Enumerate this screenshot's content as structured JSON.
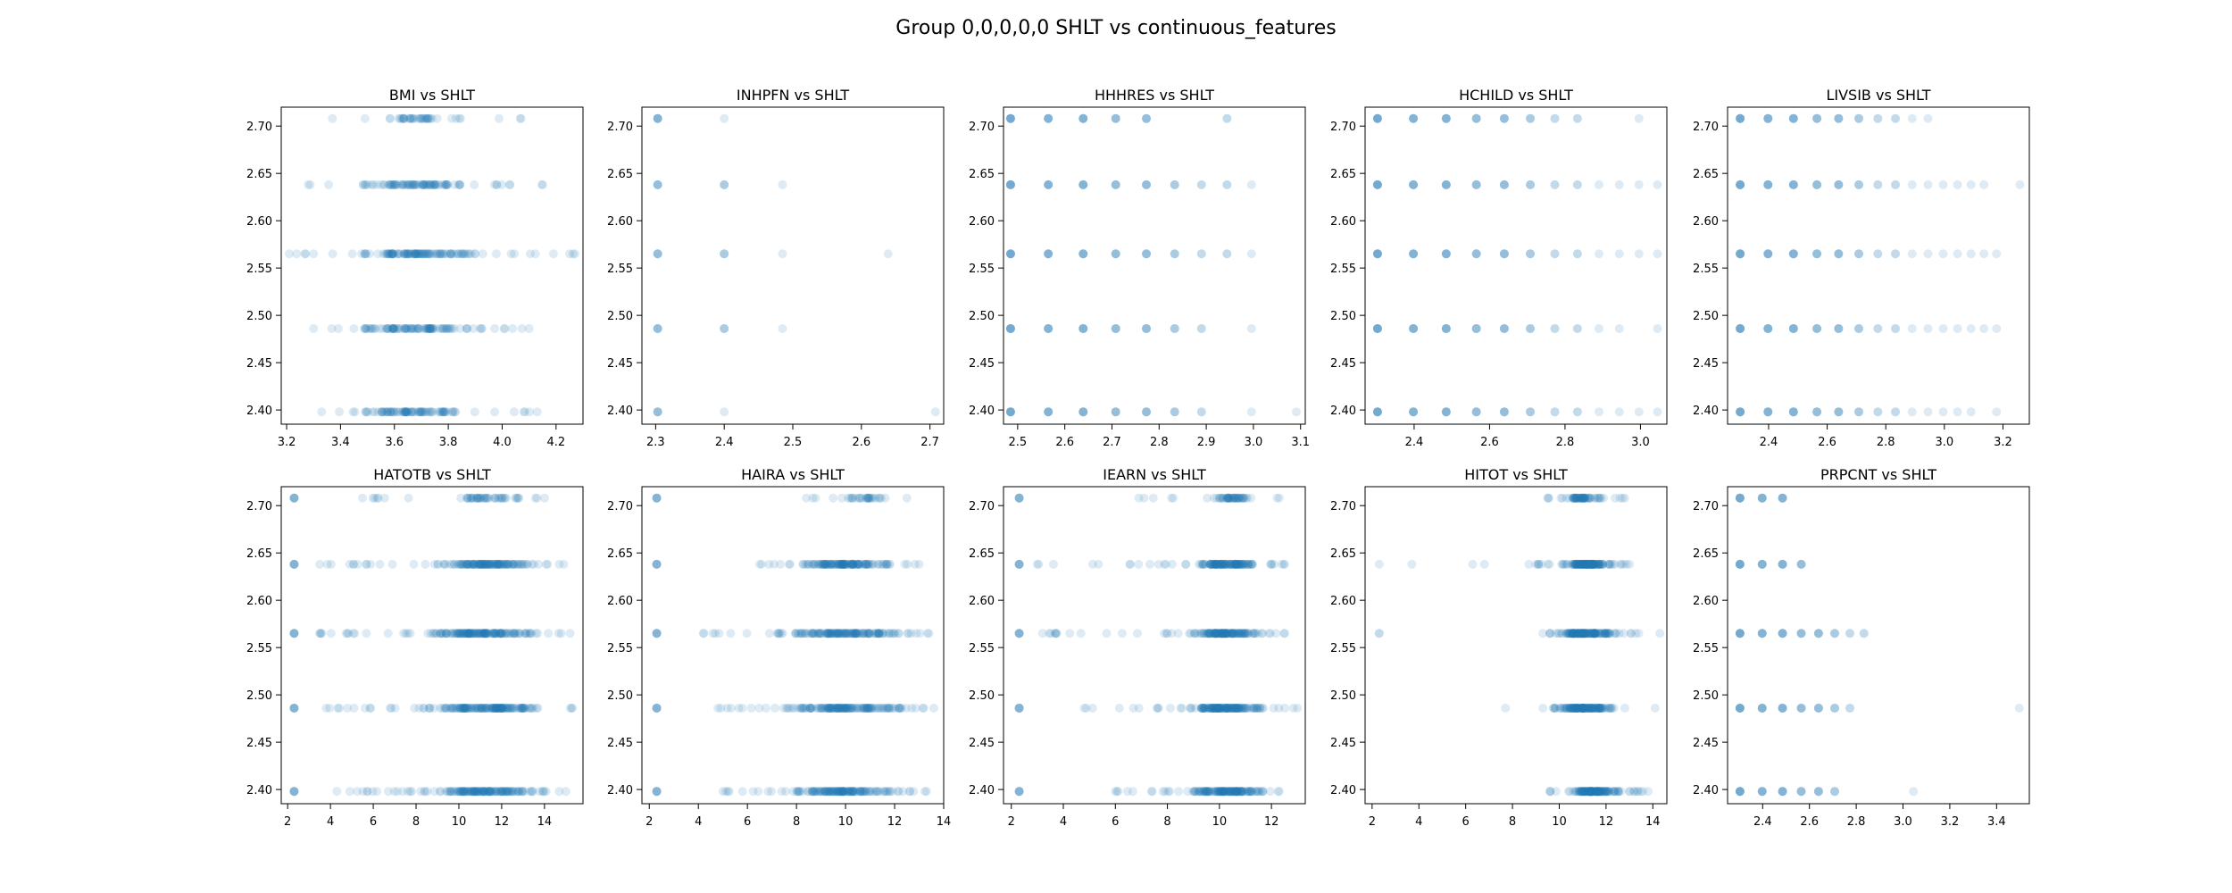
{
  "figure": {
    "title": "Group 0,0,0,0,0 SHLT vs continuous_features",
    "point_color": "#1f77b4",
    "point_alpha": 0.15
  },
  "chart_data": [
    {
      "type": "scatter",
      "title": "BMI vs SHLT",
      "xlim": [
        3.18,
        4.3
      ],
      "ylim": [
        2.385,
        2.72
      ],
      "xticks": [
        "3.2",
        "3.4",
        "3.6",
        "3.8",
        "4.0",
        "4.2"
      ],
      "xtick_values": [
        3.2,
        3.4,
        3.6,
        3.8,
        4.0,
        4.2
      ],
      "yticks": [
        "2.40",
        "2.45",
        "2.50",
        "2.55",
        "2.60",
        "2.65",
        "2.70"
      ],
      "ytick_values": [
        2.4,
        2.45,
        2.5,
        2.55,
        2.6,
        2.65,
        2.7
      ],
      "levels": [
        {
          "y": 2.708,
          "x_range": [
            3.37,
            4.07
          ],
          "dense_range": [
            3.55,
            3.8
          ],
          "n": 40
        },
        {
          "y": 2.638,
          "x_range": [
            3.28,
            4.15
          ],
          "dense_range": [
            3.42,
            3.93
          ],
          "n": 90
        },
        {
          "y": 2.565,
          "x_range": [
            3.21,
            4.27
          ],
          "dense_range": [
            3.38,
            4.0
          ],
          "n": 120
        },
        {
          "y": 2.486,
          "x_range": [
            3.3,
            4.1
          ],
          "dense_range": [
            3.42,
            3.97
          ],
          "n": 100
        },
        {
          "y": 2.398,
          "x_range": [
            3.33,
            4.13
          ],
          "dense_range": [
            3.37,
            3.93
          ],
          "n": 90
        }
      ]
    },
    {
      "type": "scatter",
      "title": "INHPFN vs SHLT",
      "xlim": [
        2.28,
        2.72
      ],
      "ylim": [
        2.385,
        2.72
      ],
      "xticks": [
        "2.3",
        "2.4",
        "2.5",
        "2.6",
        "2.7"
      ],
      "xtick_values": [
        2.3,
        2.4,
        2.5,
        2.6,
        2.7
      ],
      "yticks": [
        "2.40",
        "2.45",
        "2.50",
        "2.55",
        "2.60",
        "2.65",
        "2.70"
      ],
      "ytick_values": [
        2.4,
        2.45,
        2.5,
        2.55,
        2.6,
        2.65,
        2.7
      ],
      "points": [
        [
          2.303,
          2.708
        ],
        [
          2.303,
          2.708
        ],
        [
          2.303,
          2.708
        ],
        [
          2.303,
          2.708
        ],
        [
          2.303,
          2.708
        ],
        [
          2.4,
          2.708
        ],
        [
          2.303,
          2.638
        ],
        [
          2.303,
          2.638
        ],
        [
          2.303,
          2.638
        ],
        [
          2.303,
          2.638
        ],
        [
          2.4,
          2.638
        ],
        [
          2.4,
          2.638
        ],
        [
          2.4,
          2.638
        ],
        [
          2.485,
          2.638
        ],
        [
          2.303,
          2.565
        ],
        [
          2.303,
          2.565
        ],
        [
          2.303,
          2.565
        ],
        [
          2.303,
          2.565
        ],
        [
          2.4,
          2.565
        ],
        [
          2.4,
          2.565
        ],
        [
          2.4,
          2.565
        ],
        [
          2.485,
          2.565
        ],
        [
          2.639,
          2.565
        ],
        [
          2.303,
          2.486
        ],
        [
          2.303,
          2.486
        ],
        [
          2.303,
          2.486
        ],
        [
          2.303,
          2.486
        ],
        [
          2.4,
          2.486
        ],
        [
          2.4,
          2.486
        ],
        [
          2.4,
          2.486
        ],
        [
          2.485,
          2.486
        ],
        [
          2.303,
          2.398
        ],
        [
          2.303,
          2.398
        ],
        [
          2.303,
          2.398
        ],
        [
          2.303,
          2.398
        ],
        [
          2.4,
          2.398
        ],
        [
          2.708,
          2.398
        ]
      ]
    },
    {
      "type": "scatter",
      "title": "HHHRES vs SHLT",
      "xlim": [
        2.47,
        3.11
      ],
      "ylim": [
        2.385,
        2.72
      ],
      "xticks": [
        "2.5",
        "2.6",
        "2.7",
        "2.8",
        "2.9",
        "3.0",
        "3.1"
      ],
      "xtick_values": [
        2.5,
        2.6,
        2.7,
        2.8,
        2.9,
        3.0,
        3.1
      ],
      "yticks": [
        "2.40",
        "2.45",
        "2.50",
        "2.55",
        "2.60",
        "2.65",
        "2.70"
      ],
      "ytick_values": [
        2.4,
        2.45,
        2.5,
        2.55,
        2.6,
        2.65,
        2.7
      ],
      "discrete_x": [
        2.485,
        2.565,
        2.639,
        2.708,
        2.773,
        2.833,
        2.89,
        2.944,
        2.996,
        3.091
      ],
      "levels": [
        {
          "y": 2.708,
          "x_idx_max": 7,
          "skip": [
            5,
            6
          ]
        },
        {
          "y": 2.638,
          "x_idx_max": 8,
          "skip": []
        },
        {
          "y": 2.565,
          "x_idx_max": 8,
          "skip": []
        },
        {
          "y": 2.486,
          "x_idx_max": 8,
          "skip": [
            7
          ]
        },
        {
          "y": 2.398,
          "x_idx_max": 9,
          "skip": [
            7
          ]
        }
      ]
    },
    {
      "type": "scatter",
      "title": "HCHILD vs SHLT",
      "xlim": [
        2.27,
        3.07
      ],
      "ylim": [
        2.385,
        2.72
      ],
      "xticks": [
        "2.4",
        "2.6",
        "2.8",
        "3.0"
      ],
      "xtick_values": [
        2.4,
        2.6,
        2.8,
        3.0
      ],
      "yticks": [
        "2.40",
        "2.45",
        "2.50",
        "2.55",
        "2.60",
        "2.65",
        "2.70"
      ],
      "ytick_values": [
        2.4,
        2.45,
        2.5,
        2.55,
        2.6,
        2.65,
        2.7
      ],
      "discrete_x": [
        2.303,
        2.398,
        2.485,
        2.565,
        2.639,
        2.708,
        2.773,
        2.833,
        2.89,
        2.944,
        2.996,
        3.045
      ],
      "levels": [
        {
          "y": 2.708,
          "x_idx_max": 10,
          "skip": [
            8,
            9
          ]
        },
        {
          "y": 2.638,
          "x_idx_max": 11,
          "skip": []
        },
        {
          "y": 2.565,
          "x_idx_max": 11,
          "skip": []
        },
        {
          "y": 2.486,
          "x_idx_max": 11,
          "skip": [
            10
          ]
        },
        {
          "y": 2.398,
          "x_idx_max": 11,
          "skip": []
        }
      ]
    },
    {
      "type": "scatter",
      "title": "LIVSIB vs SHLT",
      "xlim": [
        2.26,
        3.29
      ],
      "ylim": [
        2.385,
        2.72
      ],
      "xticks": [
        "2.4",
        "2.6",
        "2.8",
        "3.0",
        "3.2"
      ],
      "xtick_values": [
        2.4,
        2.6,
        2.8,
        3.0,
        3.2
      ],
      "yticks": [
        "2.40",
        "2.45",
        "2.50",
        "2.55",
        "2.60",
        "2.65",
        "2.70"
      ],
      "ytick_values": [
        2.4,
        2.45,
        2.5,
        2.55,
        2.6,
        2.65,
        2.7
      ],
      "discrete_x": [
        2.303,
        2.398,
        2.485,
        2.565,
        2.639,
        2.708,
        2.773,
        2.833,
        2.89,
        2.944,
        2.996,
        3.045,
        3.091,
        3.135,
        3.178,
        3.258
      ],
      "levels": [
        {
          "y": 2.708,
          "x_idx_max": 9,
          "skip": []
        },
        {
          "y": 2.638,
          "x_idx_max": 15,
          "skip": [
            14
          ]
        },
        {
          "y": 2.565,
          "x_idx_max": 14,
          "skip": []
        },
        {
          "y": 2.486,
          "x_idx_max": 14,
          "skip": []
        },
        {
          "y": 2.398,
          "x_idx_max": 14,
          "skip": [
            13
          ]
        }
      ]
    },
    {
      "type": "scatter",
      "title": "HATOTB vs SHLT",
      "xlim": [
        1.7,
        15.8
      ],
      "ylim": [
        2.385,
        2.72
      ],
      "xticks": [
        "2",
        "4",
        "6",
        "8",
        "10",
        "12",
        "14"
      ],
      "xtick_values": [
        2,
        4,
        6,
        8,
        10,
        12,
        14
      ],
      "yticks": [
        "2.40",
        "2.45",
        "2.50",
        "2.55",
        "2.60",
        "2.65",
        "2.70"
      ],
      "ytick_values": [
        2.4,
        2.45,
        2.5,
        2.55,
        2.6,
        2.65,
        2.7
      ],
      "left_cluster_x": 2.303,
      "levels": [
        {
          "y": 2.708,
          "x_range": [
            5.5,
            14.0
          ],
          "dense_range": [
            9.5,
            13.5
          ],
          "n": 50
        },
        {
          "y": 2.638,
          "x_range": [
            3.5,
            14.9
          ],
          "dense_range": [
            8.5,
            14.0
          ],
          "n": 140
        },
        {
          "y": 2.565,
          "x_range": [
            3.5,
            15.2
          ],
          "dense_range": [
            7.5,
            14.5
          ],
          "n": 160
        },
        {
          "y": 2.486,
          "x_range": [
            3.8,
            15.3
          ],
          "dense_range": [
            7.5,
            14.7
          ],
          "n": 160
        },
        {
          "y": 2.398,
          "x_range": [
            4.3,
            15.0
          ],
          "dense_range": [
            7.5,
            14.6
          ],
          "n": 150
        }
      ]
    },
    {
      "type": "scatter",
      "title": "HAIRA vs SHLT",
      "xlim": [
        1.7,
        14.0
      ],
      "ylim": [
        2.385,
        2.72
      ],
      "xticks": [
        "2",
        "4",
        "6",
        "8",
        "10",
        "12",
        "14"
      ],
      "xtick_values": [
        2,
        4,
        6,
        8,
        10,
        12,
        14
      ],
      "yticks": [
        "2.40",
        "2.45",
        "2.50",
        "2.55",
        "2.60",
        "2.65",
        "2.70"
      ],
      "ytick_values": [
        2.4,
        2.45,
        2.5,
        2.55,
        2.6,
        2.65,
        2.7
      ],
      "left_cluster_x": 2.303,
      "levels": [
        {
          "y": 2.708,
          "x_range": [
            8.4,
            12.5
          ],
          "dense_range": [
            9.5,
            12.0
          ],
          "n": 30
        },
        {
          "y": 2.638,
          "x_range": [
            6.5,
            13.0
          ],
          "dense_range": [
            7.5,
            12.5
          ],
          "n": 130
        },
        {
          "y": 2.565,
          "x_range": [
            4.2,
            13.4
          ],
          "dense_range": [
            6.8,
            13.0
          ],
          "n": 150
        },
        {
          "y": 2.486,
          "x_range": [
            4.8,
            13.6
          ],
          "dense_range": [
            7.0,
            13.3
          ],
          "n": 150
        },
        {
          "y": 2.398,
          "x_range": [
            5.0,
            13.3
          ],
          "dense_range": [
            7.0,
            13.0
          ],
          "n": 140
        }
      ]
    },
    {
      "type": "scatter",
      "title": "IEARN vs SHLT",
      "xlim": [
        1.7,
        13.3
      ],
      "ylim": [
        2.385,
        2.72
      ],
      "xticks": [
        "2",
        "4",
        "6",
        "8",
        "10",
        "12"
      ],
      "xtick_values": [
        2,
        4,
        6,
        8,
        10,
        12
      ],
      "yticks": [
        "2.40",
        "2.45",
        "2.50",
        "2.55",
        "2.60",
        "2.65",
        "2.70"
      ],
      "ytick_values": [
        2.4,
        2.45,
        2.5,
        2.55,
        2.6,
        2.65,
        2.7
      ],
      "left_cluster_x": 2.303,
      "levels": [
        {
          "y": 2.708,
          "x_range": [
            6.9,
            12.3
          ],
          "dense_range": [
            9.5,
            11.5
          ],
          "n": 50
        },
        {
          "y": 2.638,
          "x_range": [
            3.0,
            12.5
          ],
          "dense_range": [
            8.7,
            11.8
          ],
          "n": 130
        },
        {
          "y": 2.565,
          "x_range": [
            3.2,
            12.5
          ],
          "dense_range": [
            8.5,
            12.0
          ],
          "n": 140
        },
        {
          "y": 2.486,
          "x_range": [
            4.8,
            13.0
          ],
          "dense_range": [
            8.3,
            12.2
          ],
          "n": 150
        },
        {
          "y": 2.398,
          "x_range": [
            6.0,
            12.3
          ],
          "dense_range": [
            8.6,
            12.0
          ],
          "n": 140
        }
      ]
    },
    {
      "type": "scatter",
      "title": "HITOT vs SHLT",
      "xlim": [
        1.7,
        14.6
      ],
      "ylim": [
        2.385,
        2.72
      ],
      "xticks": [
        "2",
        "4",
        "6",
        "8",
        "10",
        "12",
        "14"
      ],
      "xtick_values": [
        2,
        4,
        6,
        8,
        10,
        12,
        14
      ],
      "yticks": [
        "2.40",
        "2.45",
        "2.50",
        "2.55",
        "2.60",
        "2.65",
        "2.70"
      ],
      "ytick_values": [
        2.4,
        2.45,
        2.5,
        2.55,
        2.6,
        2.65,
        2.7
      ],
      "levels": [
        {
          "y": 2.708,
          "x_range": [
            9.5,
            12.8
          ],
          "dense_range": [
            10.0,
            12.0
          ],
          "n": 60
        },
        {
          "y": 2.638,
          "x_range": [
            9.0,
            13.0
          ],
          "dense_range": [
            9.8,
            12.5
          ],
          "n": 130
        },
        {
          "y": 2.565,
          "x_range": [
            9.3,
            13.4
          ],
          "dense_range": [
            9.8,
            12.8
          ],
          "n": 140
        },
        {
          "y": 2.486,
          "x_range": [
            9.3,
            12.8
          ],
          "dense_range": [
            9.8,
            12.5
          ],
          "n": 130
        },
        {
          "y": 2.398,
          "x_range": [
            9.6,
            13.8
          ],
          "dense_range": [
            10.0,
            12.8
          ],
          "n": 130
        }
      ],
      "extra_points": [
        [
          2.303,
          2.638
        ],
        [
          3.7,
          2.638
        ],
        [
          6.3,
          2.638
        ],
        [
          6.8,
          2.638
        ],
        [
          8.7,
          2.638
        ],
        [
          2.303,
          2.565
        ],
        [
          2.303,
          2.565
        ],
        [
          7.7,
          2.486
        ],
        [
          14.1,
          2.486
        ],
        [
          14.3,
          2.565
        ]
      ]
    },
    {
      "type": "scatter",
      "title": "PRPCNT vs SHLT",
      "xlim": [
        2.25,
        3.54
      ],
      "ylim": [
        2.385,
        2.72
      ],
      "xticks": [
        "2.4",
        "2.6",
        "2.8",
        "3.0",
        "3.2",
        "3.4"
      ],
      "xtick_values": [
        2.4,
        2.6,
        2.8,
        3.0,
        3.2,
        3.4
      ],
      "yticks": [
        "2.40",
        "2.45",
        "2.50",
        "2.55",
        "2.60",
        "2.65",
        "2.70"
      ],
      "ytick_values": [
        2.4,
        2.45,
        2.5,
        2.55,
        2.6,
        2.65,
        2.7
      ],
      "discrete_x": [
        2.303,
        2.398,
        2.485,
        2.565,
        2.639,
        2.708,
        2.773,
        2.833,
        3.045,
        3.497
      ],
      "levels": [
        {
          "y": 2.708,
          "x_idx_max": 2,
          "skip": []
        },
        {
          "y": 2.638,
          "x_idx_max": 3,
          "skip": []
        },
        {
          "y": 2.565,
          "x_idx_max": 7,
          "skip": []
        },
        {
          "y": 2.486,
          "x_idx_max": 6,
          "skip": []
        },
        {
          "y": 2.398,
          "x_idx_max": 8,
          "skip": [
            6,
            7
          ]
        }
      ],
      "extra_points": [
        [
          3.497,
          2.486
        ]
      ]
    }
  ]
}
